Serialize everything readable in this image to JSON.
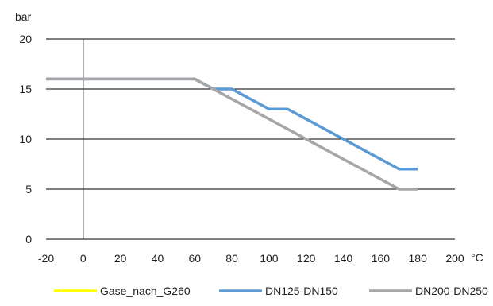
{
  "chart_data": {
    "type": "line",
    "title": "",
    "xlabel": "°C",
    "ylabel": "bar",
    "xlim": [
      -20,
      200
    ],
    "ylim": [
      0,
      20
    ],
    "x_ticks": [
      "-20",
      "0",
      "20",
      "40",
      "60",
      "80",
      "100",
      "120",
      "140",
      "160",
      "180",
      "200"
    ],
    "y_ticks": [
      "0",
      "5",
      "10",
      "15",
      "20"
    ],
    "grid": "horizontal",
    "legend_position": "bottom",
    "series": [
      {
        "name": "Gase_nach_G260",
        "color": "#ffff00",
        "points": []
      },
      {
        "name": "DN125-DN150",
        "color": "#5b9bd5",
        "points": [
          [
            -20,
            16
          ],
          [
            60,
            16
          ],
          [
            70,
            15
          ],
          [
            80,
            15
          ],
          [
            100,
            13
          ],
          [
            110,
            13
          ],
          [
            170,
            7
          ],
          [
            180,
            7
          ]
        ]
      },
      {
        "name": "DN200-DN250",
        "color": "#a6a6a6",
        "points": [
          [
            -20,
            16
          ],
          [
            60,
            16
          ],
          [
            170,
            5
          ],
          [
            180,
            5
          ]
        ]
      }
    ]
  }
}
